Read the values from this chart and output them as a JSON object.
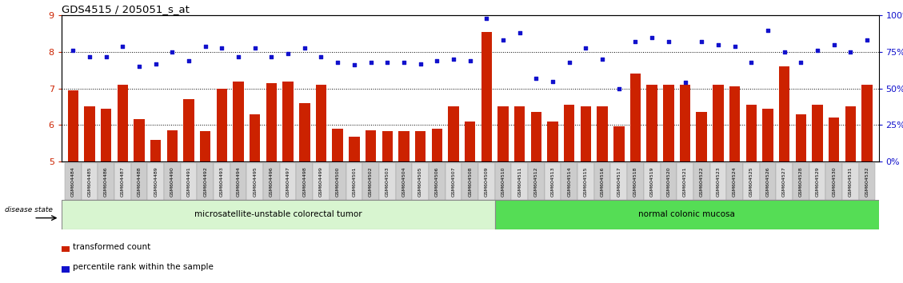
{
  "title": "GDS4515 / 205051_s_at",
  "samples": [
    "GSM604484",
    "GSM604485",
    "GSM604486",
    "GSM604487",
    "GSM604488",
    "GSM604489",
    "GSM604490",
    "GSM604491",
    "GSM604492",
    "GSM604493",
    "GSM604494",
    "GSM604495",
    "GSM604496",
    "GSM604497",
    "GSM604498",
    "GSM604499",
    "GSM604500",
    "GSM604501",
    "GSM604502",
    "GSM604503",
    "GSM604504",
    "GSM604505",
    "GSM604506",
    "GSM604507",
    "GSM604508",
    "GSM604509",
    "GSM604510",
    "GSM604511",
    "GSM604512",
    "GSM604513",
    "GSM604514",
    "GSM604515",
    "GSM604516",
    "GSM604517",
    "GSM604518",
    "GSM604519",
    "GSM604520",
    "GSM604521",
    "GSM604522",
    "GSM604523",
    "GSM604524",
    "GSM604525",
    "GSM604526",
    "GSM604527",
    "GSM604528",
    "GSM604529",
    "GSM604530",
    "GSM604531",
    "GSM604532"
  ],
  "bar_values": [
    6.95,
    6.5,
    6.45,
    7.1,
    6.15,
    5.58,
    5.85,
    6.7,
    5.82,
    7.0,
    7.2,
    6.3,
    7.15,
    7.2,
    6.6,
    7.1,
    5.9,
    5.68,
    5.85,
    5.82,
    5.82,
    5.82,
    5.9,
    6.5,
    6.1,
    8.55,
    6.5,
    6.5,
    6.35,
    6.1,
    6.55,
    6.5,
    6.5,
    5.97,
    7.4,
    7.1,
    7.1,
    7.1,
    6.35,
    7.1,
    7.05,
    6.55,
    6.45,
    7.6,
    6.3,
    6.55,
    6.2,
    6.5,
    7.1
  ],
  "percentile_values": [
    76,
    72,
    72,
    79,
    65,
    67,
    75,
    69,
    79,
    78,
    72,
    78,
    72,
    74,
    78,
    72,
    68,
    66,
    68,
    68,
    68,
    67,
    69,
    70,
    69,
    98,
    83,
    88,
    57,
    55,
    68,
    78,
    70,
    50,
    82,
    85,
    82,
    54,
    82,
    80,
    79,
    68,
    90,
    75,
    68,
    76,
    80,
    75,
    83
  ],
  "group1_count": 26,
  "group2_count": 23,
  "group1_label": "microsatellite-unstable colorectal tumor",
  "group2_label": "normal colonic mucosa",
  "bar_color": "#cc2200",
  "dot_color": "#1111cc",
  "bar_bottom": 5.0,
  "ylim_left": [
    5.0,
    9.0
  ],
  "ylim_right": [
    0,
    100
  ],
  "yticks_left": [
    5,
    6,
    7,
    8,
    9
  ],
  "yticks_right": [
    0,
    25,
    50,
    75,
    100
  ],
  "yticklabels_right": [
    "0%",
    "25%",
    "50%",
    "75%",
    "100%"
  ],
  "grid_values": [
    6.0,
    7.0,
    8.0
  ],
  "legend_items": [
    "transformed count",
    "percentile rank within the sample"
  ],
  "disease_state_label": "disease state",
  "group1_color": "#d8f5d0",
  "group2_color": "#55dd55"
}
